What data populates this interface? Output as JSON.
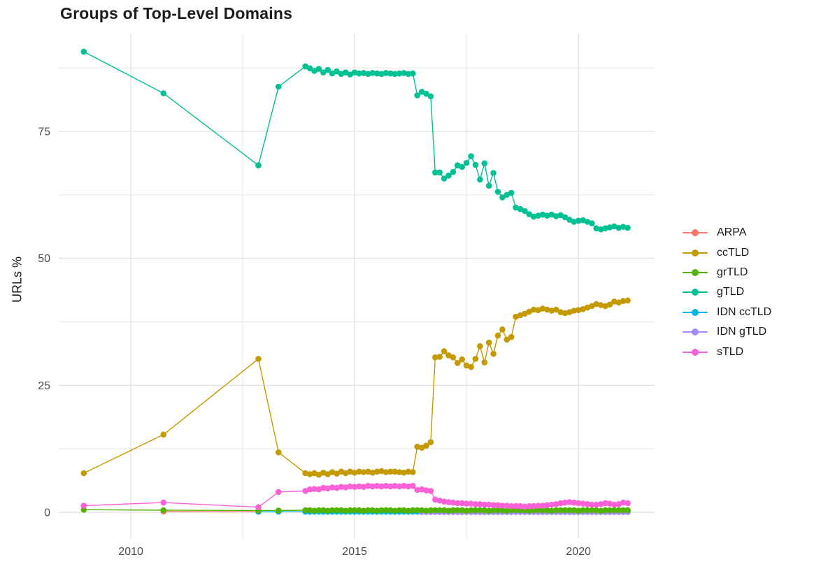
{
  "chart_data": {
    "type": "line-scatter",
    "title": "Groups of Top-Level Domains",
    "xlabel": "",
    "ylabel": "URLs %",
    "grid": true,
    "legend_position": "right",
    "xlim": [
      2008.39,
      2021.7
    ],
    "ylim": [
      -5.1,
      94.26
    ],
    "x_ticks": [
      {
        "value": 2010,
        "label": "2010"
      },
      {
        "value": 2015,
        "label": "2015"
      },
      {
        "value": 2020,
        "label": "2020"
      }
    ],
    "x_minor": [
      2012.5,
      2017.5
    ],
    "y_ticks": [
      {
        "value": 0,
        "label": "0"
      },
      {
        "value": 25,
        "label": "25"
      },
      {
        "value": 50,
        "label": "50"
      },
      {
        "value": 75,
        "label": "75"
      }
    ],
    "y_minor": [
      12.5,
      37.5,
      62.5,
      87.5
    ],
    "draw_order": [
      "ARPA",
      "ccTLD",
      "IDN ccTLD",
      "IDN gTLD",
      "grTLD",
      "gTLD",
      "sTLD"
    ],
    "series": [
      {
        "name": "ARPA",
        "color": "#F8766D",
        "sparse": [
          [
            2010.73,
            0.15
          ],
          [
            2012.85,
            0.1
          ]
        ]
      },
      {
        "name": "ccTLD",
        "color": "#C49A00",
        "sparse": [
          [
            2008.95,
            7.7
          ],
          [
            2010.73,
            15.3
          ],
          [
            2012.85,
            30.2
          ],
          [
            2013.3,
            11.8
          ]
        ],
        "dense_start": 2013.9,
        "dense_step": 0.1,
        "dense_values": [
          7.7,
          7.5,
          7.7,
          7.4,
          7.8,
          7.5,
          7.9,
          7.6,
          8.0,
          7.7,
          8.0,
          7.8,
          8.0,
          7.9,
          8.0,
          7.8,
          8.0,
          8.1,
          7.9,
          8.0,
          8.0,
          7.9,
          7.8,
          8.0,
          7.9,
          12.9,
          12.7,
          13.1,
          13.8,
          30.5,
          30.6,
          31.7,
          30.9,
          30.5,
          29.4,
          30.1,
          28.9,
          28.6,
          30.2,
          32.7,
          29.5,
          33.4,
          31.2,
          34.8,
          36.0,
          34.0,
          34.5,
          38.5,
          38.8,
          39.1,
          39.5,
          39.9,
          39.8,
          40.1,
          39.9,
          39.7,
          39.9,
          39.4,
          39.2,
          39.4,
          39.7,
          39.8,
          40.0,
          40.3,
          40.6,
          41.0,
          40.8,
          40.6,
          40.9,
          41.5,
          41.3,
          41.6,
          41.7
        ]
      },
      {
        "name": "grTLD",
        "color": "#53B400",
        "sparse": [
          [
            2008.95,
            0.5
          ],
          [
            2010.73,
            0.4
          ],
          [
            2012.85,
            0.35
          ],
          [
            2013.3,
            0.35
          ]
        ],
        "dense_start": 2013.9,
        "dense_step": 0.1,
        "dense_values": [
          0.4,
          0.4,
          0.3,
          0.4,
          0.4,
          0.3,
          0.4,
          0.4,
          0.4,
          0.3,
          0.4,
          0.4,
          0.4,
          0.3,
          0.4,
          0.4,
          0.3,
          0.4,
          0.4,
          0.4,
          0.3,
          0.4,
          0.4,
          0.3,
          0.4,
          0.4,
          0.4,
          0.3,
          0.4,
          0.4,
          0.4,
          0.4,
          0.3,
          0.4,
          0.4,
          0.4,
          0.3,
          0.4,
          0.4,
          0.4,
          0.4,
          0.3,
          0.4,
          0.4,
          0.4,
          0.3,
          0.4,
          0.4,
          0.4,
          0.4,
          0.3,
          0.4,
          0.4,
          0.4,
          0.4,
          0.3,
          0.4,
          0.4,
          0.4,
          0.4,
          0.4,
          0.3,
          0.4,
          0.4,
          0.4,
          0.4,
          0.3,
          0.4,
          0.4,
          0.4,
          0.4,
          0.4,
          0.4
        ]
      },
      {
        "name": "gTLD",
        "color": "#00C094",
        "sparse": [
          [
            2008.95,
            90.7
          ],
          [
            2010.73,
            82.5
          ],
          [
            2012.85,
            68.3
          ],
          [
            2013.3,
            83.8
          ]
        ],
        "dense_start": 2013.9,
        "dense_step": 0.1,
        "dense_values": [
          87.8,
          87.4,
          86.9,
          87.3,
          86.6,
          87.1,
          86.4,
          86.8,
          86.3,
          86.6,
          86.2,
          86.6,
          86.4,
          86.5,
          86.3,
          86.5,
          86.4,
          86.3,
          86.5,
          86.4,
          86.3,
          86.4,
          86.5,
          86.3,
          86.4,
          82.1,
          82.8,
          82.4,
          81.9,
          66.9,
          66.9,
          65.7,
          66.3,
          67.0,
          68.3,
          68.0,
          68.8,
          70.1,
          68.4,
          65.5,
          68.7,
          64.3,
          66.8,
          63.1,
          62.0,
          62.5,
          62.9,
          60.0,
          59.7,
          59.3,
          58.7,
          58.2,
          58.4,
          58.6,
          58.4,
          58.6,
          58.3,
          58.5,
          58.1,
          57.6,
          57.2,
          57.4,
          57.5,
          57.2,
          56.9,
          55.9,
          55.7,
          55.9,
          56.1,
          56.3,
          56.0,
          56.2,
          56.0
        ]
      },
      {
        "name": "IDN ccTLD",
        "color": "#00B6EB",
        "sparse": [
          [
            2012.85,
            0.1
          ],
          [
            2013.3,
            0.1
          ]
        ],
        "dense_start": 2013.9,
        "dense_step": 0.1,
        "dense_fill": 0.1,
        "dense_count": 73
      },
      {
        "name": "IDN gTLD",
        "color": "#A58AFF",
        "sparse": [],
        "dense_start": 2016.5,
        "dense_step": 0.1,
        "dense_fill": 0.05,
        "dense_count": 47
      },
      {
        "name": "sTLD",
        "color": "#FB61D7",
        "sparse": [
          [
            2008.95,
            1.3
          ],
          [
            2010.73,
            1.9
          ],
          [
            2012.85,
            1.0
          ],
          [
            2013.3,
            4.0
          ]
        ],
        "dense_start": 2013.9,
        "dense_step": 0.1,
        "dense_values": [
          4.2,
          4.5,
          4.6,
          4.5,
          4.8,
          4.7,
          4.9,
          4.8,
          5.0,
          4.9,
          5.1,
          5.0,
          5.1,
          5.0,
          5.2,
          5.1,
          5.2,
          5.1,
          5.2,
          5.1,
          5.2,
          5.1,
          5.2,
          5.1,
          5.2,
          4.4,
          4.5,
          4.3,
          4.2,
          2.5,
          2.3,
          2.1,
          2.0,
          1.9,
          1.8,
          1.8,
          1.7,
          1.7,
          1.6,
          1.6,
          1.5,
          1.5,
          1.4,
          1.4,
          1.3,
          1.3,
          1.2,
          1.2,
          1.2,
          1.1,
          1.2,
          1.2,
          1.3,
          1.3,
          1.4,
          1.5,
          1.6,
          1.8,
          1.9,
          2.0,
          1.9,
          1.8,
          1.7,
          1.6,
          1.5,
          1.5,
          1.6,
          1.8,
          1.7,
          1.5,
          1.6,
          1.9,
          1.8
        ]
      }
    ],
    "style": {
      "grid_major_color": "#e5e5e5",
      "grid_minor_color": "#ebebeb",
      "tick_label_color": "#4d4d4d",
      "point_radius": 4.3,
      "line_width": 1.4
    }
  }
}
